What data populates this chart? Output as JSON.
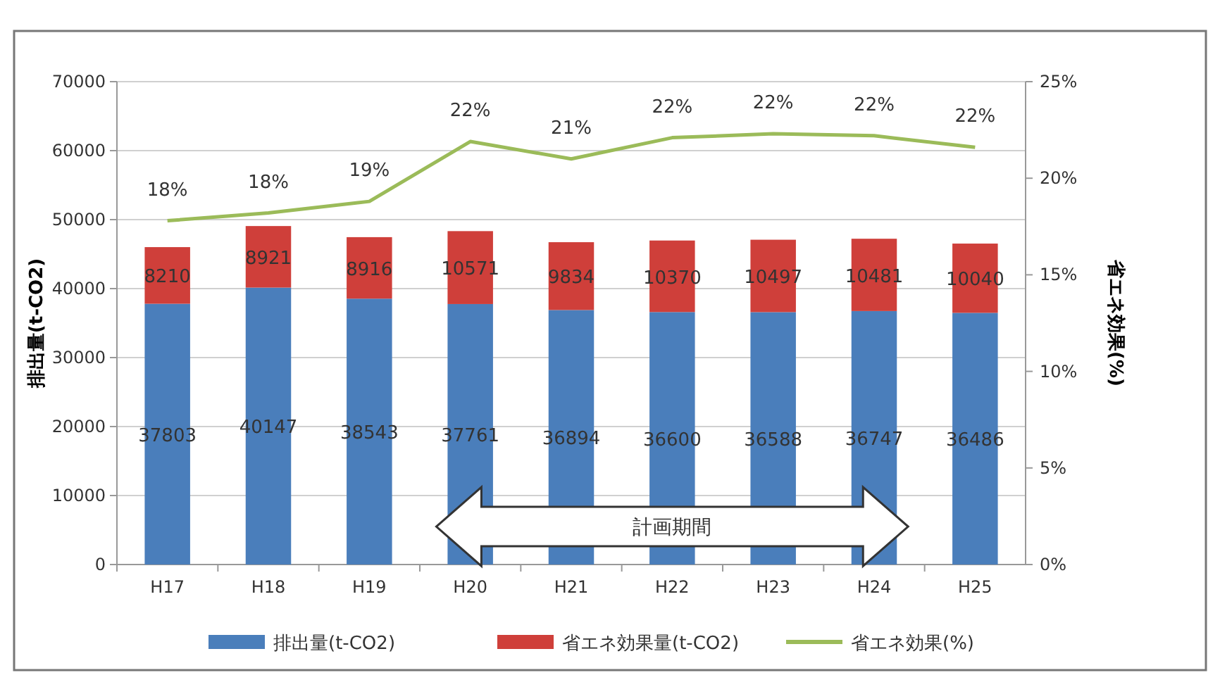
{
  "chart_data": {
    "type": "bar",
    "stacked": true,
    "categories": [
      "H17",
      "H18",
      "H19",
      "H20",
      "H21",
      "H22",
      "H23",
      "H24",
      "H25"
    ],
    "series": [
      {
        "name": "排出量(t-CO2)",
        "color": "#4a7ebb",
        "values": [
          37803,
          40147,
          38543,
          37761,
          36894,
          36600,
          36588,
          36747,
          36486
        ]
      },
      {
        "name": "省エネ効果量(t-CO2)",
        "color": "#cf3f3a",
        "values": [
          8210,
          8921,
          8916,
          10571,
          9834,
          10370,
          10497,
          10481,
          10040
        ]
      },
      {
        "name": "省エネ効果(%)",
        "type": "line",
        "axis": "y2",
        "color": "#9bbb59",
        "marker": "none",
        "values": [
          17.8,
          18.2,
          18.8,
          21.9,
          21.0,
          22.1,
          22.3,
          22.2,
          21.6
        ],
        "value_labels": [
          "18%",
          "18%",
          "19%",
          "22%",
          "21%",
          "22%",
          "22%",
          "22%",
          "22%"
        ]
      }
    ],
    "data_labels": true,
    "ylabel": "排出量(t-CO2)",
    "y2label": "省エネ効果(%)",
    "ylim": [
      0,
      70000
    ],
    "yticks": [
      0,
      10000,
      20000,
      30000,
      40000,
      50000,
      60000,
      70000
    ],
    "y2lim": [
      0,
      25
    ],
    "y2ticks": [
      {
        "value": 0,
        "label": "0%"
      },
      {
        "value": 5,
        "label": "5%"
      },
      {
        "value": 10,
        "label": "10%"
      },
      {
        "value": 15,
        "label": "15%"
      },
      {
        "value": 20,
        "label": "20%"
      },
      {
        "value": 25,
        "label": "25%"
      }
    ],
    "grid": "y",
    "legend": "bottom",
    "annotations": [
      "計画期間"
    ]
  }
}
